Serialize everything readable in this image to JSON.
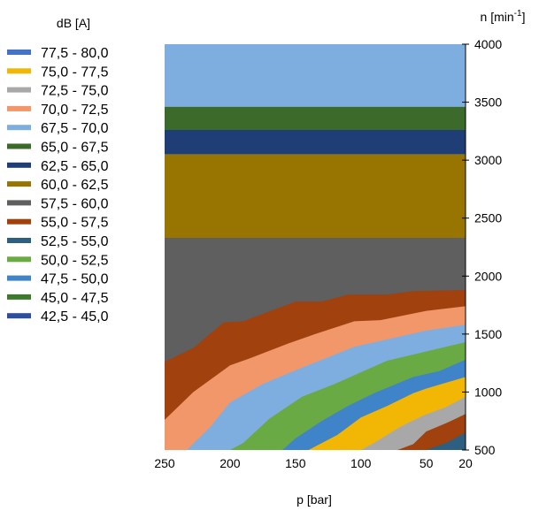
{
  "chart_data": {
    "type": "area",
    "xlabel": "p [bar]",
    "ylabel_main": "n [min",
    "ylabel_sup": "-1",
    "ylabel_close": "]",
    "legend_title": "dB [A]",
    "legend_placement": "left",
    "xlim": [
      250,
      20
    ],
    "ylim": [
      500,
      4000
    ],
    "x_ticks": [
      "250",
      "200",
      "150",
      "100",
      "50",
      "20"
    ],
    "x_tick_values": [
      250,
      200,
      150,
      100,
      50,
      20
    ],
    "y_ticks": [
      "4000",
      "3500",
      "3000",
      "2500",
      "2000",
      "1500",
      "1000",
      "500"
    ],
    "y_tick_values": [
      4000,
      3500,
      3000,
      2500,
      2000,
      1500,
      1000,
      500
    ],
    "grid": false,
    "bands": [
      {
        "name": "42,5 - 45,0",
        "color": "#2F4E9B"
      },
      {
        "name": "45,0 - 47,5",
        "color": "#3E7A2E"
      },
      {
        "name": "47,5 - 50,0",
        "color": "#3F83C9"
      },
      {
        "name": "50,0 - 52,5",
        "color": "#6AAA45"
      },
      {
        "name": "52,5 - 55,0",
        "color": "#2E5F80"
      },
      {
        "name": "55,0 - 57,5",
        "color": "#A0410E"
      },
      {
        "name": "57,5 - 60,0",
        "color": "#5F5F5F"
      },
      {
        "name": "60,0 - 62,5",
        "color": "#977500"
      },
      {
        "name": "62,5 - 65,0",
        "color": "#1F3E75"
      },
      {
        "name": "65,0 - 67,5",
        "color": "#3C6A2A"
      },
      {
        "name": "67,5 - 70,0",
        "color": "#7EAEDF"
      },
      {
        "name": "70,0 - 72,5",
        "color": "#F1976A"
      },
      {
        "name": "72,5 - 75,0",
        "color": "#A8A8A8"
      },
      {
        "name": "75,0 - 77,5",
        "color": "#F2B705"
      },
      {
        "name": "77,5 - 80,0",
        "color": "#4472C4"
      }
    ],
    "legend_order": [
      "77,5 - 80,0",
      "75,0 - 77,5",
      "72,5 - 75,0",
      "70,0 - 72,5",
      "67,5 - 70,0",
      "65,0 - 67,5",
      "62,5 - 65,0",
      "60,0 - 62,5",
      "57,5 - 60,0",
      "55,0 - 57,5",
      "52,5 - 55,0",
      "50,0 - 52,5",
      "47,5 - 50,0",
      "45,0 - 47,5",
      "42,5 - 45,0"
    ],
    "regions": [
      {
        "band": "67,5 - 70,0",
        "color": "#7EAEDF",
        "points": [
          [
            250,
            4000
          ],
          [
            20,
            4000
          ],
          [
            20,
            3460
          ],
          [
            250,
            3460
          ]
        ]
      },
      {
        "band": "65,0 - 67,5",
        "color": "#3C6A2A",
        "points": [
          [
            250,
            3460
          ],
          [
            20,
            3460
          ],
          [
            20,
            3260
          ],
          [
            250,
            3260
          ]
        ]
      },
      {
        "band": "62,5 - 65,0",
        "color": "#1F3E75",
        "points": [
          [
            250,
            3260
          ],
          [
            20,
            3260
          ],
          [
            20,
            3050
          ],
          [
            250,
            3050
          ]
        ]
      },
      {
        "band": "60,0 - 62,5",
        "color": "#977500",
        "points": [
          [
            250,
            3050
          ],
          [
            20,
            3050
          ],
          [
            20,
            2330
          ],
          [
            250,
            2330
          ]
        ]
      },
      {
        "band": "57,5 - 60,0",
        "color": "#5F5F5F",
        "points": [
          [
            250,
            2330
          ],
          [
            20,
            2330
          ],
          [
            20,
            500
          ],
          [
            250,
            500
          ]
        ]
      },
      {
        "band": "55,0 - 57,5",
        "color": "#A0410E",
        "points": [
          [
            250,
            1260
          ],
          [
            228,
            1380
          ],
          [
            205,
            1600
          ],
          [
            190,
            1610
          ],
          [
            150,
            1780
          ],
          [
            130,
            1780
          ],
          [
            110,
            1840
          ],
          [
            80,
            1840
          ],
          [
            60,
            1870
          ],
          [
            20,
            1880
          ],
          [
            20,
            500
          ],
          [
            250,
            500
          ]
        ]
      },
      {
        "band": "70,0 - 72,5",
        "color": "#F1976A",
        "points": [
          [
            250,
            760
          ],
          [
            228,
            1000
          ],
          [
            200,
            1230
          ],
          [
            185,
            1290
          ],
          [
            155,
            1420
          ],
          [
            135,
            1500
          ],
          [
            105,
            1610
          ],
          [
            85,
            1620
          ],
          [
            50,
            1700
          ],
          [
            20,
            1740
          ],
          [
            20,
            500
          ],
          [
            250,
            500
          ]
        ]
      },
      {
        "band": "67,5 - 70,0",
        "color": "#7EAEDF",
        "points": [
          [
            233,
            500
          ],
          [
            215,
            700
          ],
          [
            200,
            910
          ],
          [
            175,
            1070
          ],
          [
            145,
            1210
          ],
          [
            125,
            1300
          ],
          [
            105,
            1390
          ],
          [
            50,
            1530
          ],
          [
            20,
            1580
          ],
          [
            20,
            500
          ]
        ]
      },
      {
        "band": "50,0 - 52,5",
        "color": "#6AAA45",
        "points": [
          [
            200,
            500
          ],
          [
            190,
            560
          ],
          [
            170,
            770
          ],
          [
            145,
            960
          ],
          [
            120,
            1070
          ],
          [
            100,
            1170
          ],
          [
            80,
            1270
          ],
          [
            50,
            1350
          ],
          [
            20,
            1430
          ],
          [
            20,
            500
          ]
        ]
      },
      {
        "band": "47,5 - 50,0",
        "color": "#3F83C9",
        "points": [
          [
            160,
            500
          ],
          [
            150,
            600
          ],
          [
            130,
            750
          ],
          [
            110,
            880
          ],
          [
            90,
            990
          ],
          [
            60,
            1130
          ],
          [
            40,
            1180
          ],
          [
            20,
            1280
          ],
          [
            20,
            500
          ]
        ]
      },
      {
        "band": "75,0 - 77,5",
        "color": "#F2B705",
        "points": [
          [
            140,
            500
          ],
          [
            118,
            630
          ],
          [
            100,
            780
          ],
          [
            80,
            880
          ],
          [
            60,
            990
          ],
          [
            50,
            1030
          ],
          [
            20,
            1130
          ],
          [
            20,
            500
          ]
        ]
      },
      {
        "band": "72,5 - 75,0",
        "color": "#A8A8A8",
        "points": [
          [
            100,
            500
          ],
          [
            90,
            560
          ],
          [
            70,
            700
          ],
          [
            52,
            800
          ],
          [
            35,
            870
          ],
          [
            20,
            960
          ],
          [
            20,
            500
          ]
        ]
      },
      {
        "band": "55,0 - 57,5",
        "color": "#A0410E",
        "points": [
          [
            72,
            500
          ],
          [
            60,
            550
          ],
          [
            50,
            660
          ],
          [
            35,
            730
          ],
          [
            20,
            810
          ],
          [
            20,
            500
          ]
        ]
      },
      {
        "band": "52,5 - 55,0",
        "color": "#2E5F80",
        "points": [
          [
            50,
            500
          ],
          [
            35,
            560
          ],
          [
            20,
            650
          ],
          [
            20,
            500
          ]
        ]
      }
    ]
  }
}
